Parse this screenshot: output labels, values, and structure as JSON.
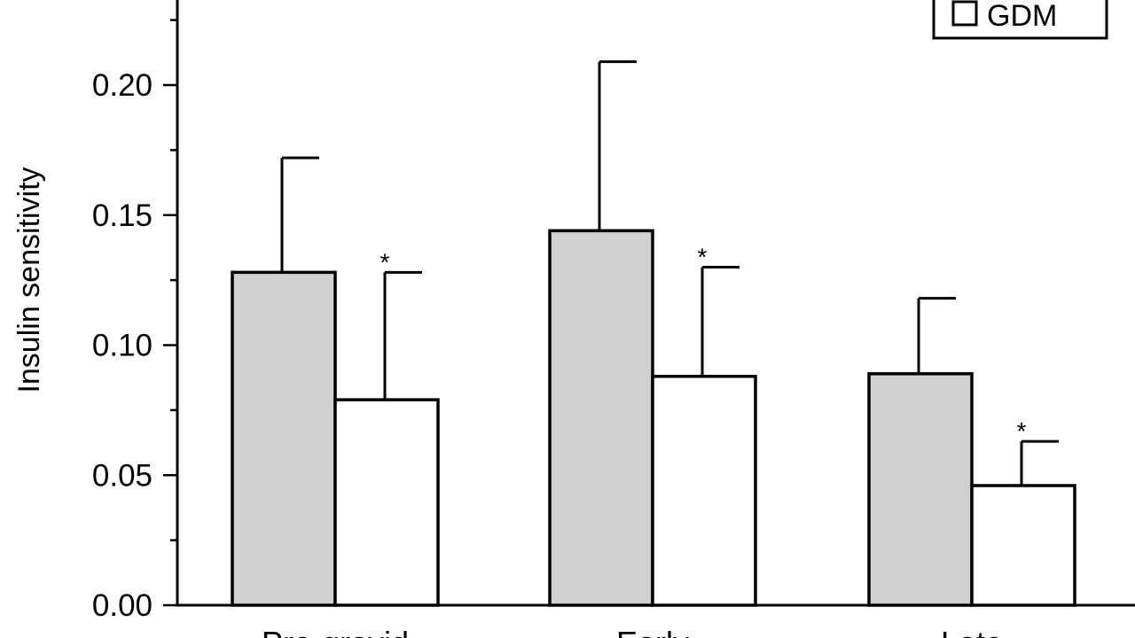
{
  "chart_data": {
    "type": "bar",
    "ylabel": "Insulin sensitivity",
    "xlabel": "",
    "ylim": [
      0,
      0.2
    ],
    "yticks": [
      "0.00",
      "0.05",
      "0.10",
      "0.15",
      "0.20"
    ],
    "categories": [
      "Pre-gravid",
      "Early",
      "Late"
    ],
    "series": [
      {
        "fill": "#d0d0d0",
        "values": [
          0.128,
          0.144,
          0.089
        ],
        "error_upper": [
          0.172,
          0.209,
          0.118
        ]
      },
      {
        "name": "GDM",
        "fill": "#ffffff",
        "values": [
          0.079,
          0.088,
          0.046
        ],
        "error_upper": [
          0.128,
          0.13,
          0.063
        ]
      }
    ],
    "annotations": [
      {
        "series": 1,
        "category": 0,
        "text": "*"
      },
      {
        "series": 1,
        "category": 1,
        "text": "*"
      },
      {
        "series": 1,
        "category": 2,
        "text": "*"
      }
    ],
    "legend": {
      "position": "top-right",
      "entries": [
        "GDM"
      ]
    }
  }
}
